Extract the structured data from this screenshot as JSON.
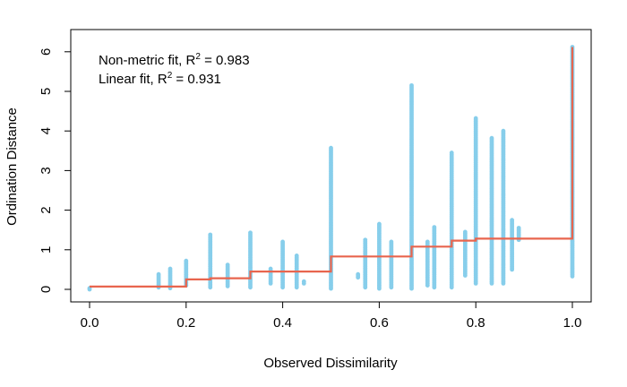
{
  "chart_data": {
    "type": "scatter",
    "title": "",
    "xlabel": "Observed Dissimilarity",
    "ylabel": "Ordination Distance",
    "xlim": [
      0,
      1
    ],
    "ylim": [
      0,
      6.15
    ],
    "xticks": [
      "0.0",
      "0.2",
      "0.4",
      "0.6",
      "0.8",
      "1.0"
    ],
    "yticks": [
      "0",
      "1",
      "2",
      "3",
      "4",
      "5",
      "6"
    ],
    "grid": false,
    "legend": "none",
    "point_color": "#87CEEB",
    "step_color": "#E8654E",
    "annotations": [
      {
        "text": "Non-metric fit, R",
        "sup": "2",
        "suffix": " = 0.983"
      },
      {
        "text": "Linear fit, R",
        "sup": "2",
        "suffix": " = 0.931"
      }
    ],
    "point_columns": [
      {
        "x": 0.0,
        "ymin": 0.0,
        "ymax": 0.03
      },
      {
        "x": 0.143,
        "ymin": 0.05,
        "ymax": 0.38
      },
      {
        "x": 0.167,
        "ymin": 0.03,
        "ymax": 0.52
      },
      {
        "x": 0.2,
        "ymin": 0.1,
        "ymax": 0.72
      },
      {
        "x": 0.25,
        "ymin": 0.05,
        "ymax": 1.38
      },
      {
        "x": 0.286,
        "ymin": 0.08,
        "ymax": 0.62
      },
      {
        "x": 0.333,
        "ymin": 0.05,
        "ymax": 1.43
      },
      {
        "x": 0.375,
        "ymin": 0.15,
        "ymax": 0.52
      },
      {
        "x": 0.4,
        "ymin": 0.05,
        "ymax": 1.2
      },
      {
        "x": 0.429,
        "ymin": 0.05,
        "ymax": 0.85
      },
      {
        "x": 0.444,
        "ymin": 0.15,
        "ymax": 0.2
      },
      {
        "x": 0.5,
        "ymin": 0.02,
        "ymax": 3.57
      },
      {
        "x": 0.556,
        "ymin": 0.3,
        "ymax": 0.38
      },
      {
        "x": 0.571,
        "ymin": 0.05,
        "ymax": 1.25
      },
      {
        "x": 0.6,
        "ymin": 0.02,
        "ymax": 1.65
      },
      {
        "x": 0.625,
        "ymin": 0.05,
        "ymax": 1.2
      },
      {
        "x": 0.667,
        "ymin": 0.02,
        "ymax": 5.15
      },
      {
        "x": 0.7,
        "ymin": 0.1,
        "ymax": 1.2
      },
      {
        "x": 0.714,
        "ymin": 0.05,
        "ymax": 1.57
      },
      {
        "x": 0.75,
        "ymin": 0.05,
        "ymax": 3.45
      },
      {
        "x": 0.778,
        "ymin": 0.35,
        "ymax": 1.45
      },
      {
        "x": 0.8,
        "ymin": 0.15,
        "ymax": 4.32
      },
      {
        "x": 0.833,
        "ymin": 0.15,
        "ymax": 3.82
      },
      {
        "x": 0.857,
        "ymin": 0.15,
        "ymax": 4.0
      },
      {
        "x": 0.875,
        "ymin": 0.5,
        "ymax": 1.75
      },
      {
        "x": 0.889,
        "ymin": 1.25,
        "ymax": 1.55
      },
      {
        "x": 1.0,
        "ymin": 0.33,
        "ymax": 6.12
      }
    ],
    "step_fit": [
      {
        "x": 0.0,
        "y": 0.07
      },
      {
        "x": 0.2,
        "y": 0.07
      },
      {
        "x": 0.2,
        "y": 0.25
      },
      {
        "x": 0.25,
        "y": 0.25
      },
      {
        "x": 0.25,
        "y": 0.28
      },
      {
        "x": 0.333,
        "y": 0.28
      },
      {
        "x": 0.333,
        "y": 0.45
      },
      {
        "x": 0.5,
        "y": 0.45
      },
      {
        "x": 0.5,
        "y": 0.83
      },
      {
        "x": 0.667,
        "y": 0.83
      },
      {
        "x": 0.667,
        "y": 1.08
      },
      {
        "x": 0.75,
        "y": 1.08
      },
      {
        "x": 0.75,
        "y": 1.23
      },
      {
        "x": 0.8,
        "y": 1.23
      },
      {
        "x": 0.8,
        "y": 1.28
      },
      {
        "x": 1.0,
        "y": 1.28
      },
      {
        "x": 1.0,
        "y": 6.12
      }
    ]
  }
}
